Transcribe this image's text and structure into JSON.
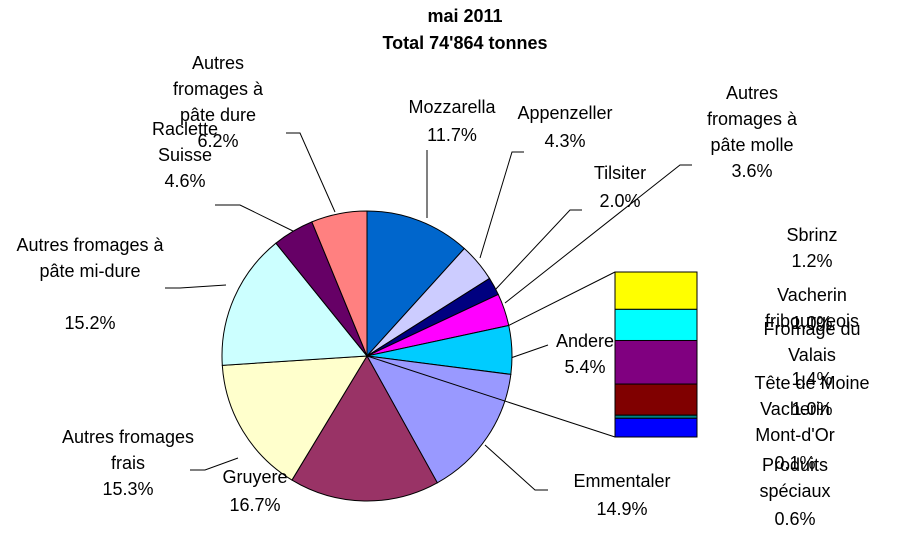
{
  "chart_data": {
    "type": "pie",
    "title": [
      "mai 2011",
      "Total 74'864 tonnes"
    ],
    "categories": [
      "Mozzarella",
      "Appenzeller",
      "Tilsiter",
      "Autres fromages à pâte molle",
      "Andere",
      "Emmentaler",
      "Gruyere",
      "Autres fromages frais",
      "Autres fromages à pâte mi-dure",
      "Raclette Suisse",
      "Autres fromages à pâte dure"
    ],
    "values": [
      11.7,
      4.3,
      2.0,
      3.6,
      5.4,
      14.9,
      16.7,
      15.3,
      15.2,
      4.6,
      6.2
    ],
    "value_labels": [
      "11.7%",
      "4.3%",
      "2.0%",
      "3.6%",
      "5.4%",
      "14.9%",
      "16.7%",
      "15.3%",
      "15.2%",
      "4.6%",
      "6.2%"
    ],
    "colors": [
      "#0066cc",
      "#ccccff",
      "#000080",
      "#ff00ff",
      "#00ccff",
      "#9999ff",
      "#993366",
      "#ffffcc",
      "#ccffff",
      "#660066",
      "#ff8080"
    ],
    "bar": {
      "categories": [
        "Sbrinz",
        "Vacherin fribourgeois",
        "Fromage du Valais",
        "Tête de Moine",
        "Vacherin Mont-d'Or",
        "Produits spéciaux"
      ],
      "values": [
        1.2,
        1.0,
        1.4,
        1.0,
        0.1,
        0.6
      ],
      "value_labels": [
        "1.2%",
        "1.0%",
        "1.4%",
        "1.0%",
        "0.1%",
        "0.6%"
      ],
      "colors": [
        "#ffff00",
        "#00ffff",
        "#800080",
        "#800000",
        "#008080",
        "#0000ff"
      ]
    }
  }
}
